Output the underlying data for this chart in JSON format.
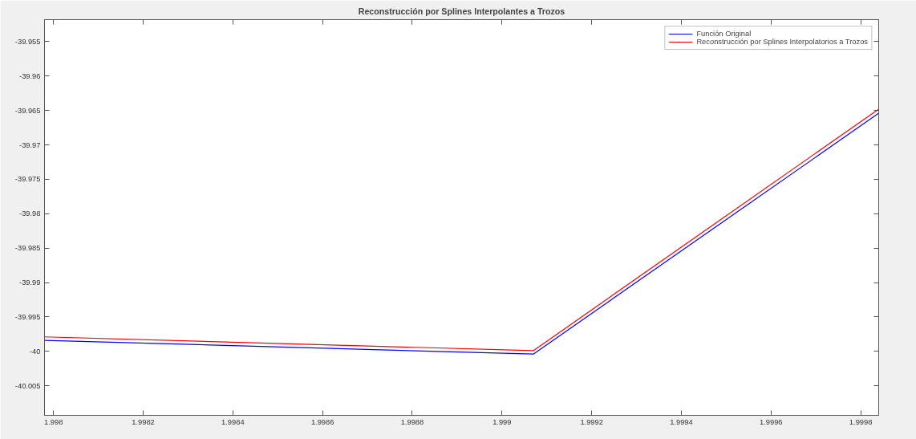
{
  "chart_data": {
    "type": "line",
    "title": "Reconstrucción por Splines Interpolantes a Trozos",
    "x": [
      1.99798,
      1.99907,
      1.99984
    ],
    "series": [
      {
        "name": "Función Original",
        "color": "#0000ff",
        "values": [
          -39.9984,
          -40.0004,
          -39.9654
        ]
      },
      {
        "name": "Reconstrucción por Splines Interpolatorios a Trozos",
        "color": "#ff0000",
        "values": [
          -39.9979,
          -39.9999,
          -39.9648
        ]
      }
    ],
    "xlim": [
      1.99798,
      1.99984
    ],
    "ylim": [
      -40.0093,
      -39.9518
    ],
    "xticks": [
      1.998,
      1.9982,
      1.9984,
      1.9986,
      1.9988,
      1.999,
      1.9992,
      1.9994,
      1.9996,
      1.9998
    ],
    "yticks": [
      -40.005,
      -40,
      -39.995,
      -39.99,
      -39.985,
      -39.98,
      -39.975,
      -39.97,
      -39.965,
      -39.96,
      -39.955
    ],
    "grid": false,
    "legend": "top right",
    "marker": "none",
    "line_style": "solid"
  }
}
